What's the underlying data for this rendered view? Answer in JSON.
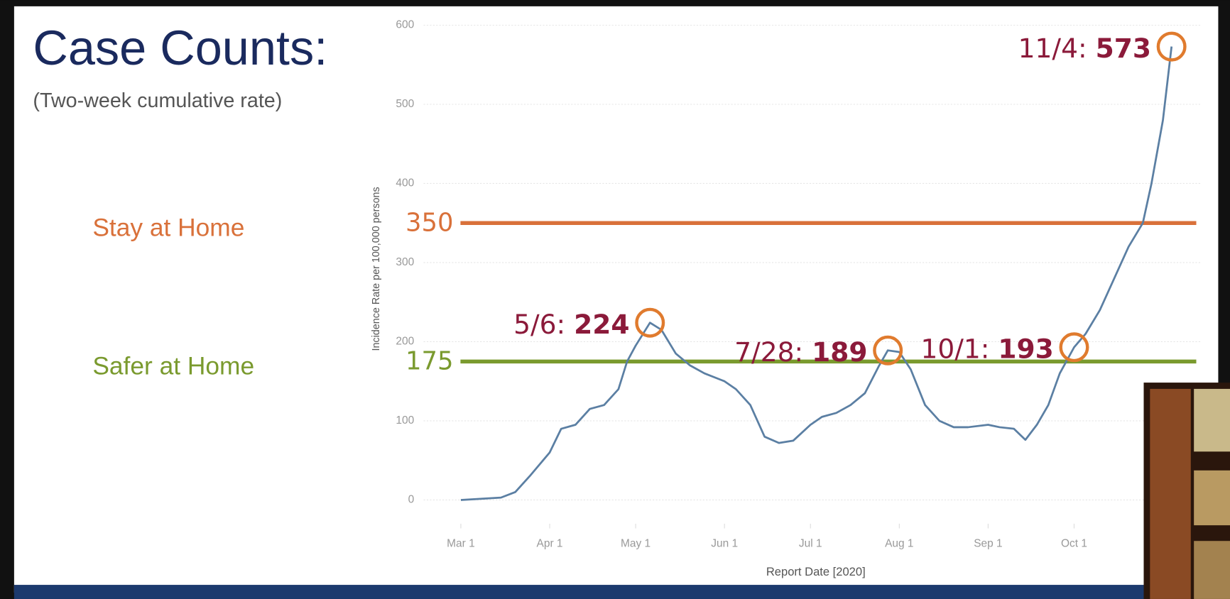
{
  "chart_data": {
    "type": "line",
    "title": "Case Counts:",
    "subtitle": "(Two-week cumulative rate)",
    "y_label": "Incidence Rate per 100,000 persons",
    "x_label": "Report Date [2020]",
    "x": [
      "2020-03-01",
      "2020-03-15",
      "2020-03-20",
      "2020-03-25",
      "2020-04-01",
      "2020-04-05",
      "2020-04-10",
      "2020-04-15",
      "2020-04-20",
      "2020-04-25",
      "2020-04-28",
      "2020-05-01",
      "2020-05-06",
      "2020-05-10",
      "2020-05-15",
      "2020-05-20",
      "2020-05-25",
      "2020-06-01",
      "2020-06-05",
      "2020-06-10",
      "2020-06-15",
      "2020-06-20",
      "2020-06-25",
      "2020-07-01",
      "2020-07-05",
      "2020-07-10",
      "2020-07-15",
      "2020-07-20",
      "2020-07-25",
      "2020-07-28",
      "2020-08-01",
      "2020-08-05",
      "2020-08-10",
      "2020-08-15",
      "2020-08-20",
      "2020-08-25",
      "2020-09-01",
      "2020-09-05",
      "2020-09-10",
      "2020-09-14",
      "2020-09-18",
      "2020-09-22",
      "2020-09-26",
      "2020-10-01",
      "2020-10-05",
      "2020-10-10",
      "2020-10-15",
      "2020-10-20",
      "2020-10-25",
      "2020-10-28",
      "2020-11-01",
      "2020-11-04"
    ],
    "series": [
      {
        "name": "Incidence Rate",
        "color": "#5b7fa3",
        "values": [
          0,
          3,
          10,
          30,
          60,
          90,
          95,
          115,
          120,
          140,
          175,
          195,
          224,
          215,
          185,
          170,
          160,
          150,
          140,
          120,
          80,
          72,
          75,
          95,
          105,
          110,
          120,
          135,
          170,
          189,
          187,
          165,
          120,
          100,
          92,
          92,
          95,
          92,
          90,
          76,
          95,
          120,
          160,
          193,
          210,
          240,
          280,
          320,
          350,
          400,
          480,
          573
        ]
      }
    ],
    "xlim": [
      "2020-02-17",
      "2020-11-14"
    ],
    "xticks": [
      {
        "value": "2020-03-01",
        "label": "Mar 1"
      },
      {
        "value": "2020-04-01",
        "label": "Apr 1"
      },
      {
        "value": "2020-05-01",
        "label": "May 1"
      },
      {
        "value": "2020-06-01",
        "label": "Jun 1"
      },
      {
        "value": "2020-07-01",
        "label": "Jul 1"
      },
      {
        "value": "2020-08-01",
        "label": "Aug 1"
      },
      {
        "value": "2020-09-01",
        "label": "Sep 1"
      },
      {
        "value": "2020-10-01",
        "label": "Oct 1"
      }
    ],
    "ylim": [
      -30,
      610
    ],
    "yticks": [
      0,
      100,
      200,
      300,
      400,
      500,
      600
    ],
    "grid": true,
    "reference_lines": [
      {
        "value": 350,
        "label": "Stay at Home",
        "color": "#d9713a"
      },
      {
        "value": 175,
        "label": "Safer at Home",
        "color": "#7a9a2e"
      }
    ],
    "annotations": [
      {
        "x": "2020-05-06",
        "label": "5/6:",
        "value": 224
      },
      {
        "x": "2020-07-28",
        "label": "7/28:",
        "value": 189
      },
      {
        "x": "2020-10-01",
        "label": "10/1:",
        "value": 193
      },
      {
        "x": "2020-11-04",
        "label": "11/4:",
        "value": 573
      }
    ]
  }
}
